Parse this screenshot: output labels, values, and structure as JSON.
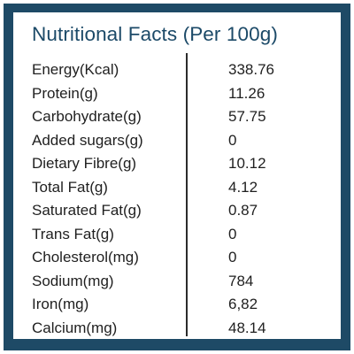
{
  "title": "Nutritional Facts (Per 100g)",
  "rows": [
    {
      "label": "Energy(Kcal)",
      "value": "338.76"
    },
    {
      "label": "Protein(g)",
      "value": "11.26"
    },
    {
      "label": "Carbohydrate(g)",
      "value": "57.75"
    },
    {
      "label": "Added sugars(g)",
      "value": "0"
    },
    {
      "label": "Dietary Fibre(g)",
      "value": "10.12"
    },
    {
      "label": "Total Fat(g)",
      "value": "4.12"
    },
    {
      "label": "Saturated Fat(g)",
      "value": "0.87"
    },
    {
      "label": "Trans Fat(g)",
      "value": "0"
    },
    {
      "label": "Cholesterol(mg)",
      "value": "0"
    },
    {
      "label": "Sodium(mg)",
      "value": "784"
    },
    {
      "label": "Iron(mg)",
      "value": "6,82"
    },
    {
      "label": "Calcium(mg)",
      "value": "48.14"
    }
  ],
  "colors": {
    "frame": "#1e4a66",
    "title": "#1c4a68",
    "text": "#1f1f1f",
    "background": "#ffffff"
  }
}
